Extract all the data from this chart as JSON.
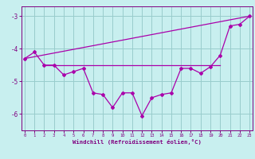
{
  "x": [
    0,
    1,
    2,
    3,
    4,
    5,
    6,
    7,
    8,
    9,
    10,
    11,
    12,
    13,
    14,
    15,
    16,
    17,
    18,
    19,
    20,
    21,
    22,
    23
  ],
  "windchill": [
    -4.3,
    -4.1,
    -4.5,
    -4.5,
    -4.8,
    -4.7,
    -4.6,
    -5.35,
    -5.4,
    -5.8,
    -5.35,
    -5.35,
    -6.05,
    -5.5,
    -5.4,
    -5.35,
    -4.6,
    -4.6,
    -4.75,
    -4.55,
    -4.2,
    -3.3,
    -3.25,
    -3.0
  ],
  "straight_line_x": [
    0,
    23
  ],
  "straight_line_y": [
    -4.3,
    -3.0
  ],
  "flat_line_x": [
    2,
    20
  ],
  "flat_line_y": [
    -4.5,
    -4.5
  ],
  "ylabel_ticks": [
    -6,
    -5,
    -4,
    -3
  ],
  "ylim": [
    -6.5,
    -2.7
  ],
  "xlim": [
    -0.3,
    23.3
  ],
  "xlabel": "Windchill (Refroidissement éolien,°C)",
  "bg_color": "#c8efef",
  "line_color": "#aa00aa",
  "grid_color": "#99cccc",
  "axis_color": "#800080",
  "font_color": "#800080",
  "marker": "D",
  "markersize": 2.0,
  "linewidth": 0.9
}
